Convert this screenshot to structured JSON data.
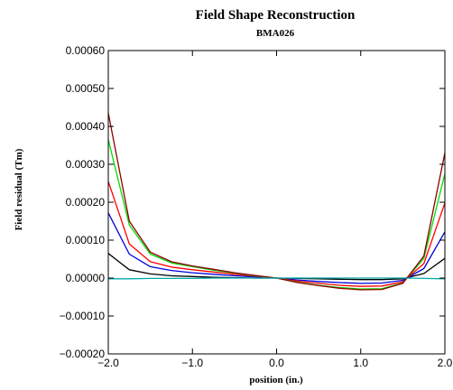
{
  "chart_data": {
    "type": "line",
    "title": "Field Shape Reconstruction",
    "subtitle": "BMA026",
    "xlabel": "position (in.)",
    "ylabel": "Field residual (Tm)",
    "xlim": [
      -2.0,
      2.0
    ],
    "ylim": [
      -0.0002,
      0.0006
    ],
    "xticks": [
      -2.0,
      -1.0,
      0.0,
      1.0,
      2.0
    ],
    "xtick_labels": [
      "−2.0",
      "−1.0",
      "0.0",
      "1.0",
      "2.0"
    ],
    "yticks": [
      -0.0002,
      -0.0001,
      0.0,
      0.0001,
      0.0002,
      0.0003,
      0.0004,
      0.0005,
      0.0006
    ],
    "ytick_labels": [
      "−0.00020",
      "−0.00010",
      "0.00000",
      "0.00010",
      "0.00020",
      "0.00030",
      "0.00040",
      "0.00050",
      "0.00060"
    ],
    "grid": false,
    "legend": "none",
    "x": [
      -2.0,
      -1.75,
      -1.5,
      -1.25,
      -1.0,
      -0.75,
      -0.5,
      -0.25,
      0.0,
      0.25,
      0.5,
      0.75,
      1.0,
      1.25,
      1.5,
      1.75,
      2.0
    ],
    "series": [
      {
        "color": "#000000",
        "values": [
          6.5e-05,
          2.2e-05,
          1.1e-05,
          6e-06,
          4e-06,
          2e-06,
          1e-06,
          0.0,
          0.0,
          -1e-06,
          -2e-06,
          -3e-06,
          -4e-06,
          -4e-06,
          -2e-06,
          1.2e-05,
          5.2e-05
        ]
      },
      {
        "color": "#0000dd",
        "values": [
          0.000172,
          6.3e-05,
          3e-05,
          2e-05,
          1.4e-05,
          1e-05,
          6e-06,
          3e-06,
          0.0,
          -5e-06,
          -9e-06,
          -1.2e-05,
          -1.4e-05,
          -1.3e-05,
          -6e-06,
          2.5e-05,
          0.000122
        ]
      },
      {
        "color": "#ff0000",
        "values": [
          0.000255,
          9e-05,
          4.3e-05,
          2.9e-05,
          2.2e-05,
          1.6e-05,
          1e-05,
          5e-06,
          0.0,
          -8e-06,
          -1.4e-05,
          -1.9e-05,
          -2.2e-05,
          -2.1e-05,
          -1e-05,
          3.8e-05,
          0.000198
        ]
      },
      {
        "color": "#00dd00",
        "values": [
          0.000365,
          0.00014,
          6.3e-05,
          4e-05,
          3e-05,
          2.1e-05,
          1.3e-05,
          6e-06,
          0.0,
          -1.1e-05,
          -1.9e-05,
          -2.5e-05,
          -2.9e-05,
          -2.8e-05,
          -1.3e-05,
          5.2e-05,
          0.000275
        ]
      },
      {
        "color": "#8b0000",
        "values": [
          0.000435,
          0.00015,
          6.8e-05,
          4.3e-05,
          3.2e-05,
          2.3e-05,
          1.4e-05,
          7e-06,
          0.0,
          -1.2e-05,
          -2e-05,
          -2.7e-05,
          -3.1e-05,
          -3e-05,
          -1.4e-05,
          5.8e-05,
          0.00033
        ]
      },
      {
        "color": "#00aaaa",
        "values": [
          -2e-06,
          -2e-06,
          -1e-06,
          -1e-06,
          -1e-06,
          0.0,
          0.0,
          0.0,
          0.0,
          0.0,
          0.0,
          0.0,
          0.0,
          0.0,
          0.0,
          -1e-06,
          -2e-06
        ]
      }
    ]
  }
}
